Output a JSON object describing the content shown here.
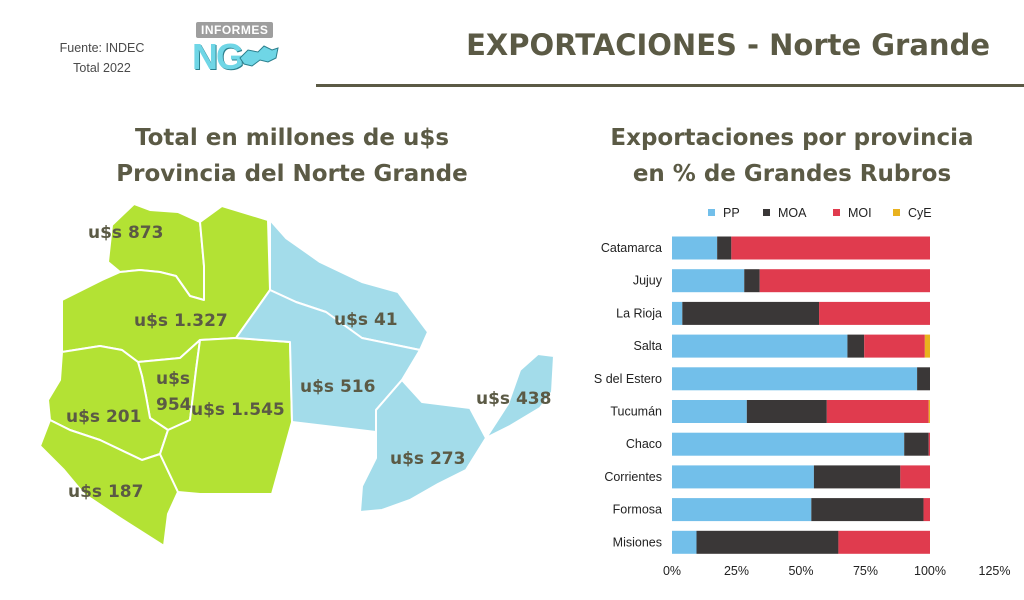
{
  "header": {
    "source_line1": "Fuente: INDEC",
    "source_line2": "Total 2022",
    "logo_tag": "INFORMES",
    "logo_letters": "NG",
    "title": "EXPORTACIONES - Norte Grande"
  },
  "colors": {
    "text": "#5b5a45",
    "green_region": "#b3e234",
    "blue_region": "#a3dcea",
    "PP": "#72bfea",
    "MOA": "#3a3737",
    "MOI": "#e03b4e",
    "CyE": "#e9b21f"
  },
  "map": {
    "subtitle_line1": "Total en millones de u$s",
    "subtitle_line2": "Provincia del Norte Grande",
    "provinces": [
      {
        "name": "Jujuy",
        "value": "u$s 873"
      },
      {
        "name": "Salta",
        "value": "u$s 1.327"
      },
      {
        "name": "Tucumán",
        "value_line1": "u$s",
        "value_line2": "954"
      },
      {
        "name": "Catamarca",
        "value": "u$s 201"
      },
      {
        "name": "La Rioja",
        "value": "u$s 187"
      },
      {
        "name": "Santiago del Estero",
        "value": "u$s 1.545"
      },
      {
        "name": "Formosa",
        "value": "u$s 41"
      },
      {
        "name": "Chaco",
        "value": "u$s 516"
      },
      {
        "name": "Misiones",
        "value": "u$s 438"
      },
      {
        "name": "Corrientes",
        "value": "u$s 273"
      }
    ]
  },
  "chart_data": {
    "type": "bar",
    "orientation": "horizontal",
    "stacked": true,
    "title_line1": "Exportaciones por provincia",
    "title_line2": "en % de Grandes Rubros",
    "categories": [
      "Catamarca",
      "Jujuy",
      "La Rioja",
      "Salta",
      "S del Estero",
      "Tucumán",
      "Chaco",
      "Corrientes",
      "Formosa",
      "Misiones"
    ],
    "series": [
      {
        "name": "PP",
        "values": [
          17.5,
          28,
          4,
          68,
          95,
          29,
          90,
          55,
          54,
          9.5
        ]
      },
      {
        "name": "MOA",
        "values": [
          5.5,
          6,
          53,
          6.5,
          5,
          31,
          9.5,
          33.5,
          43.5,
          55
        ]
      },
      {
        "name": "MOI",
        "values": [
          77,
          66,
          43,
          23.5,
          0,
          39.5,
          0.5,
          11.5,
          2.5,
          35.5
        ]
      },
      {
        "name": "CyE",
        "values": [
          0,
          0,
          0,
          2,
          0,
          0.5,
          0,
          0,
          0,
          0
        ]
      }
    ],
    "xlim": [
      0,
      125
    ],
    "xticks": [
      "0%",
      "25%",
      "50%",
      "75%",
      "100%",
      "125%"
    ],
    "legend_position": "top"
  }
}
